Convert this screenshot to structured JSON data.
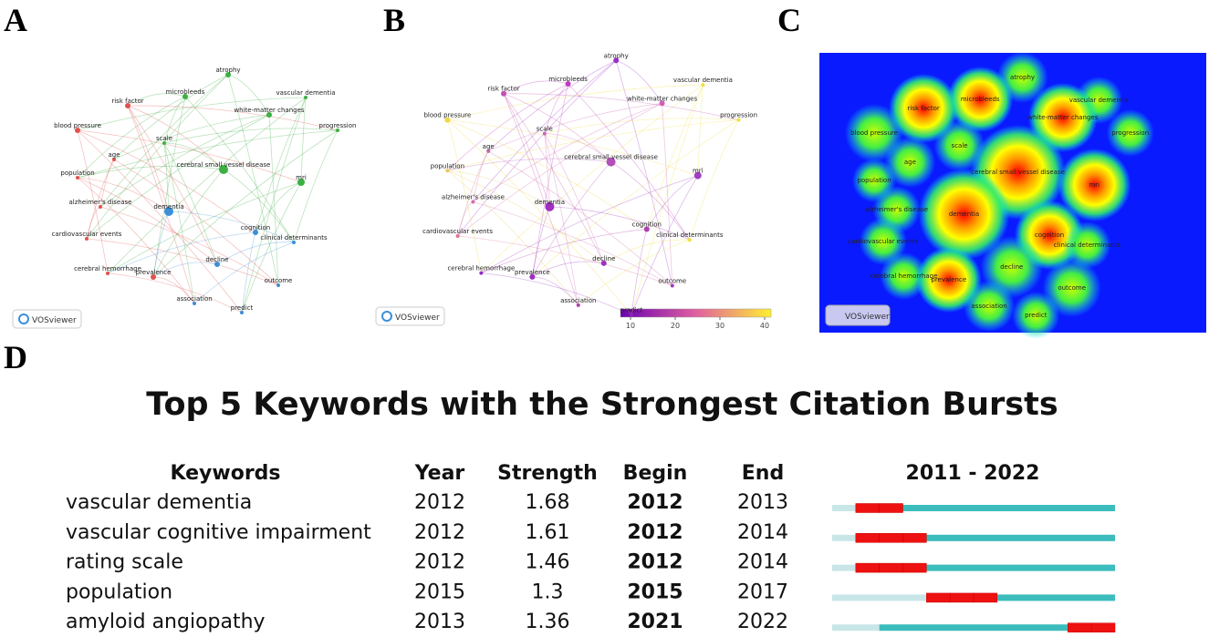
{
  "figure_labels": [
    "A",
    "B",
    "C",
    "D"
  ],
  "network": {
    "nodes": [
      "atrophy",
      "microbleeds",
      "vascular dementia",
      "risk factor",
      "white-matter changes",
      "progression",
      "blood pressure",
      "scale",
      "age",
      "cerebral small vessel disease",
      "mri",
      "population",
      "alzheimer's disease",
      "dementia",
      "cognition",
      "clinical determinants",
      "cardiovascular events",
      "decline",
      "cerebral hemorrhage",
      "prevalence",
      "outcome",
      "association",
      "predict"
    ],
    "brand": "VOSviewer",
    "colorbar_ticks": [
      10,
      20,
      30,
      40
    ]
  },
  "bursts": {
    "title": "Top 5 Keywords with the Strongest Citation Bursts",
    "headers": [
      "Keywords",
      "Year",
      "Strength",
      "Begin",
      "End"
    ],
    "timeline": "2011 - 2022",
    "rows": [
      {
        "keyword": "vascular dementia",
        "year": 2012,
        "strength": 1.68,
        "begin": 2012,
        "end": 2013
      },
      {
        "keyword": "vascular cognitive impairment",
        "year": 2012,
        "strength": 1.61,
        "begin": 2012,
        "end": 2014
      },
      {
        "keyword": "rating scale",
        "year": 2012,
        "strength": 1.46,
        "begin": 2012,
        "end": 2014
      },
      {
        "keyword": "population",
        "year": 2015,
        "strength": 1.3,
        "begin": 2015,
        "end": 2017
      },
      {
        "keyword": "amyloid angiopathy",
        "year": 2013,
        "strength": 1.36,
        "begin": 2021,
        "end": 2022
      }
    ]
  }
}
